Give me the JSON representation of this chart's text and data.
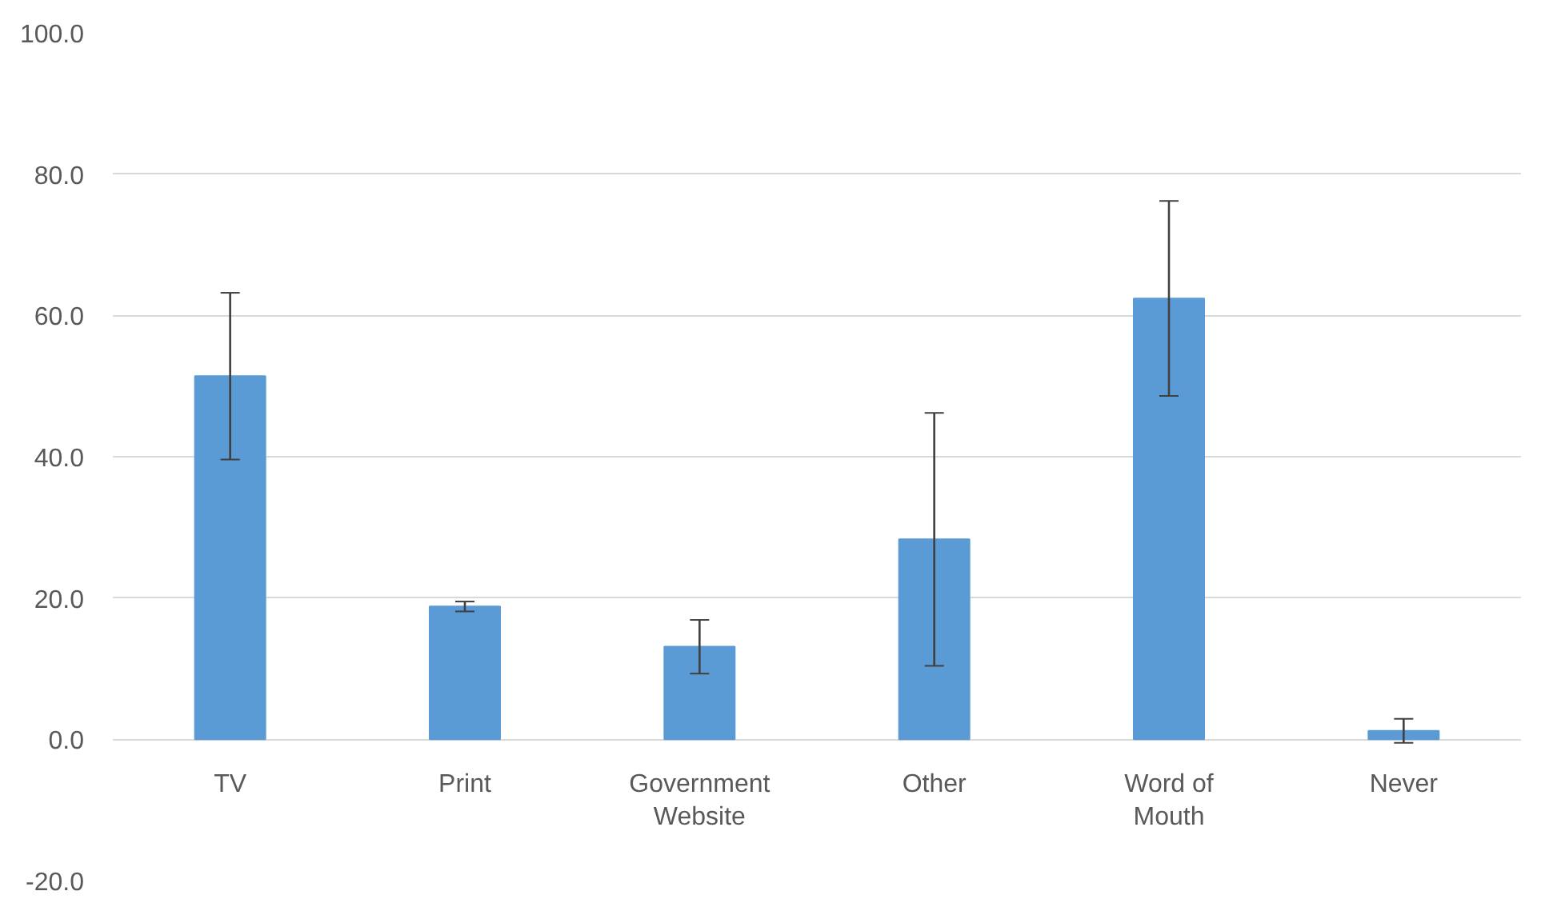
{
  "chart_data": {
    "type": "bar",
    "categories": [
      "TV",
      "Print",
      "Government\nWebsite",
      "Other",
      "Word of\nMouth",
      "Never"
    ],
    "values": [
      51.4,
      18.8,
      13.1,
      28.3,
      62.4,
      1.2
    ],
    "errors": [
      11.8,
      0.7,
      3.8,
      17.9,
      13.8,
      1.7
    ],
    "color": "#5b9bd5",
    "ylim": [
      -20,
      100
    ],
    "yticks": [
      {
        "value": -20,
        "label": "-20.0"
      },
      {
        "value": 0,
        "label": "0.0"
      },
      {
        "value": 20,
        "label": "20.0"
      },
      {
        "value": 40,
        "label": "40.0"
      },
      {
        "value": 60,
        "label": "60.0"
      },
      {
        "value": 80,
        "label": "80.0"
      },
      {
        "value": 100,
        "label": "100.0"
      }
    ],
    "grid": "y"
  }
}
